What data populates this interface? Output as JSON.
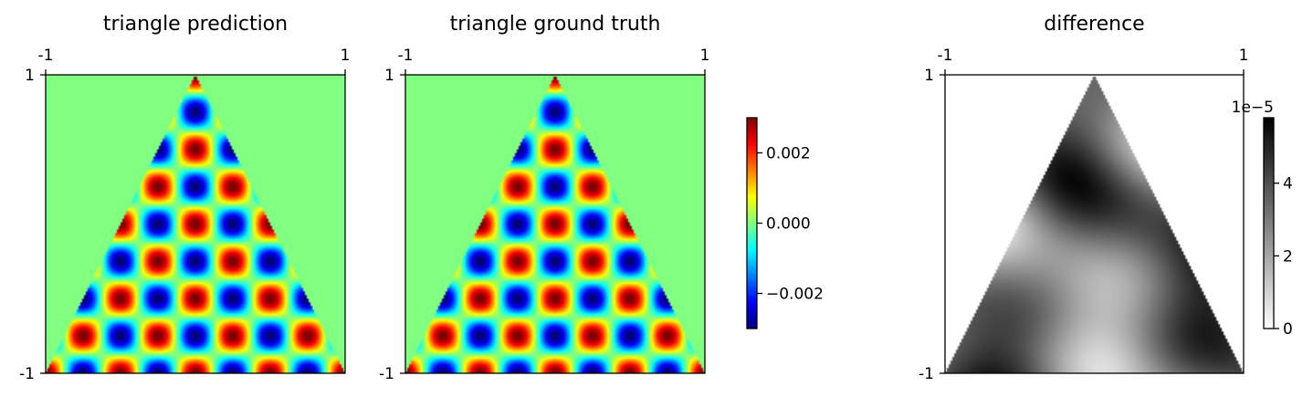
{
  "chart_data": [
    {
      "type": "heatmap",
      "title": "triangle prediction",
      "field": "pred",
      "colormap": "jet",
      "xticks": [
        "-1",
        "1"
      ],
      "yticks": [
        "1",
        "-1"
      ],
      "xlim": [
        -1,
        1
      ],
      "ylim": [
        -1,
        1
      ],
      "xlabel": "",
      "ylabel": "",
      "domain": "triangle with vertices (-1,-1), (1,-1), (0,1)",
      "pattern": "checkerboard of alternating red/blue blobs, 8 columns across the base row",
      "vmin": -0.003,
      "vmax": 0.003
    },
    {
      "type": "heatmap",
      "title": "triangle ground truth",
      "field": "truth",
      "colormap": "jet",
      "xticks": [
        "-1",
        "1"
      ],
      "yticks": [
        "1",
        "-1"
      ],
      "xlim": [
        -1,
        1
      ],
      "ylim": [
        -1,
        1
      ],
      "xlabel": "",
      "ylabel": "",
      "vmin": -0.003,
      "vmax": 0.003,
      "colorbar": {
        "ticks": [
          -0.002,
          0.0,
          0.002
        ],
        "tick_labels": [
          "−0.002",
          "0.000",
          "0.002"
        ]
      }
    },
    {
      "type": "heatmap",
      "title": "difference",
      "field": "diff",
      "colormap": "gray_r",
      "xticks": [
        "-1",
        "1"
      ],
      "yticks": [
        "1",
        "-1"
      ],
      "xlim": [
        -1,
        1
      ],
      "ylim": [
        -1,
        1
      ],
      "xlabel": "",
      "ylabel": "",
      "vmin": 0,
      "vmax": 5.8,
      "colorbar": {
        "offset_label": "1e−5",
        "ticks": [
          0,
          2,
          4
        ],
        "tick_labels": [
          "0",
          "2",
          "4"
        ]
      }
    }
  ]
}
